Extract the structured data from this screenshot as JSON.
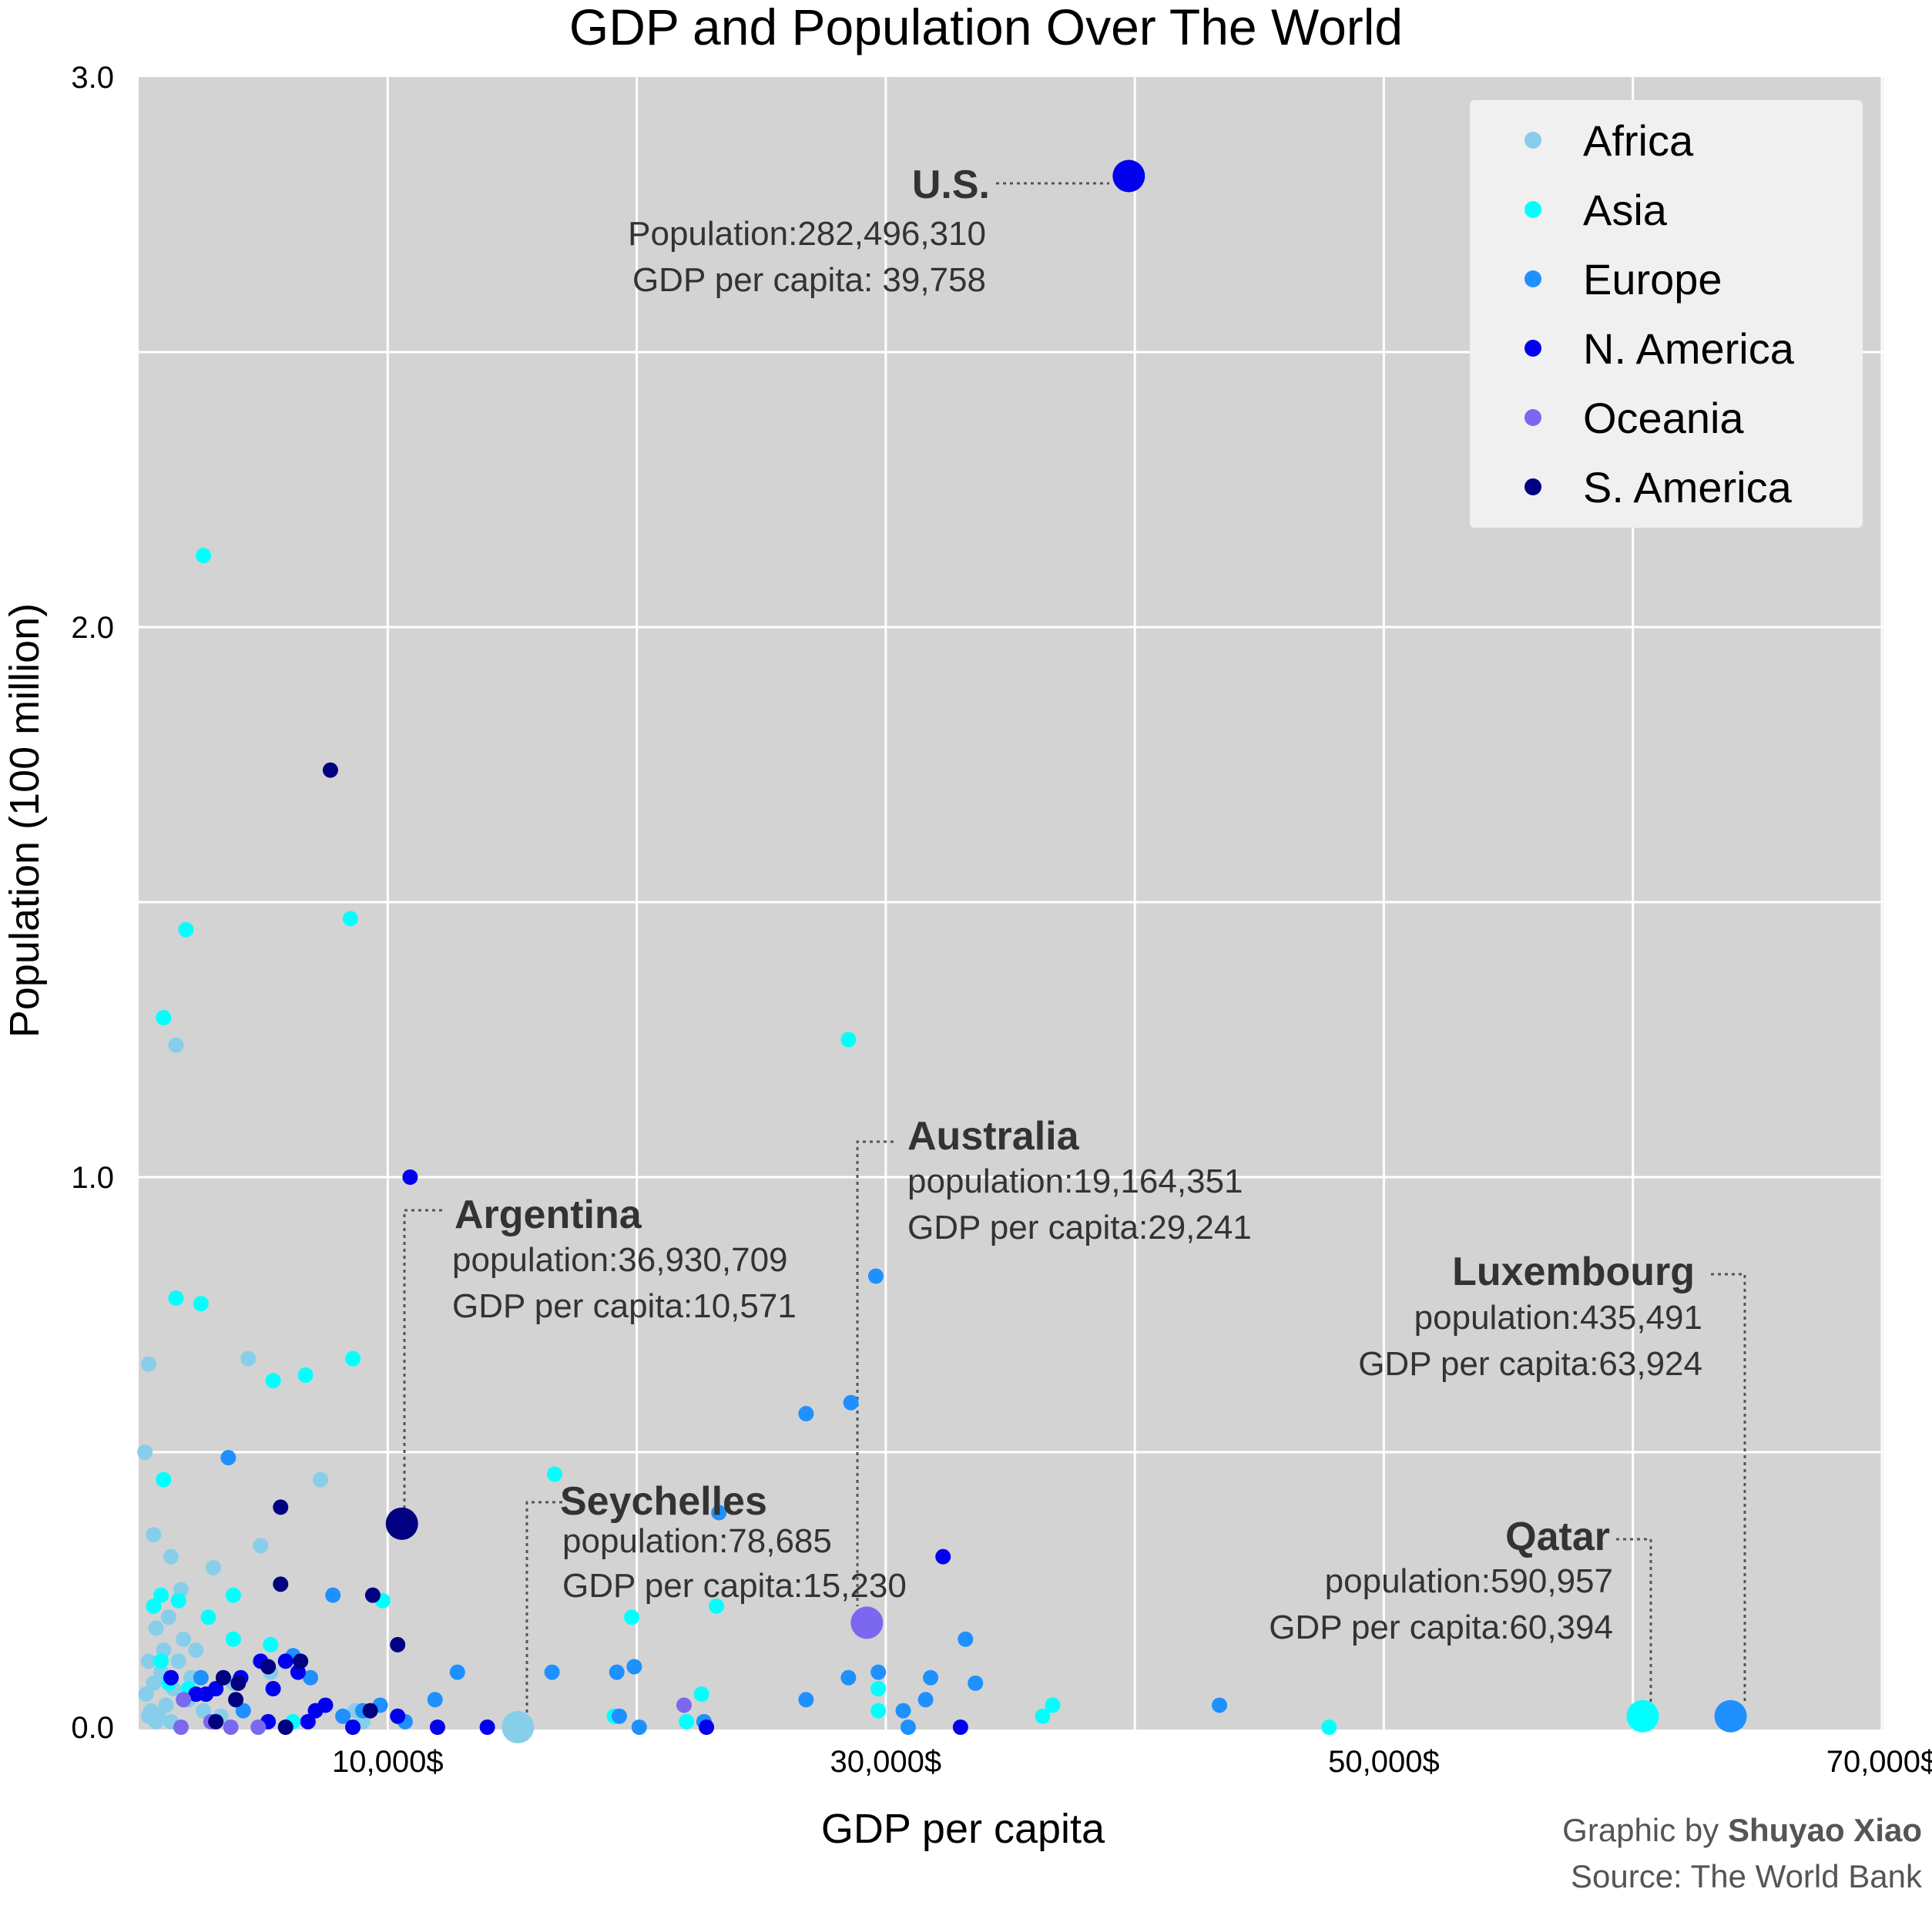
{
  "chart_data": {
    "type": "scatter",
    "title": "GDP and Population Over The World",
    "xlabel": "GDP per capita",
    "ylabel": "Population (100 million)",
    "xlim": [
      0,
      70000
    ],
    "ylim": [
      0,
      3.0
    ],
    "x_tick_values": [
      10000,
      30000,
      50000,
      70000
    ],
    "x_tick_labels": [
      "10,000$",
      "30,000$",
      "50,000$",
      "70,000$"
    ],
    "y_tick_values": [
      0,
      1,
      2,
      3
    ],
    "y_tick_labels": [
      "0.0",
      "1.0",
      "2.0",
      "3.0"
    ],
    "grid": true,
    "legend_position": "top-right",
    "series": [
      {
        "name": "Africa",
        "color": "#87ceeb",
        "points": [
          [
            250,
            0.5
          ],
          [
            400,
            0.66
          ],
          [
            600,
            0.35
          ],
          [
            1500,
            1.24
          ],
          [
            4400,
            0.67
          ],
          [
            7300,
            0.45
          ],
          [
            3000,
            0.29
          ],
          [
            4900,
            0.33
          ],
          [
            1300,
            0.31
          ],
          [
            1700,
            0.25
          ],
          [
            700,
            0.18
          ],
          [
            1000,
            0.14
          ],
          [
            2300,
            0.14
          ],
          [
            1200,
            0.2
          ],
          [
            1800,
            0.16
          ],
          [
            400,
            0.12
          ],
          [
            900,
            0.1
          ],
          [
            600,
            0.08
          ],
          [
            300,
            0.06
          ],
          [
            500,
            0.03
          ],
          [
            800,
            0.02
          ],
          [
            1100,
            0.04
          ],
          [
            1400,
            0.07
          ],
          [
            2000,
            0.05
          ],
          [
            2600,
            0.03
          ],
          [
            3300,
            0.02
          ],
          [
            5300,
            0.1
          ],
          [
            9000,
            0.01
          ],
          [
            8700,
            0.03
          ],
          [
            700,
            0.01
          ],
          [
            400,
            0.02
          ],
          [
            1300,
            0.01
          ],
          [
            1600,
            0.12
          ],
          [
            2100,
            0.09
          ],
          [
            3800,
            0.08
          ],
          [
            15230,
            0.0
          ]
        ]
      },
      {
        "name": "Asia",
        "color": "#00ffff",
        "points": [
          [
            2600,
            2.13
          ],
          [
            1900,
            1.45
          ],
          [
            8500,
            1.47
          ],
          [
            1000,
            1.29
          ],
          [
            28500,
            1.25
          ],
          [
            1500,
            0.78
          ],
          [
            2500,
            0.77
          ],
          [
            8600,
            0.67
          ],
          [
            5400,
            0.63
          ],
          [
            6700,
            0.64
          ],
          [
            1000,
            0.45
          ],
          [
            16700,
            0.46
          ],
          [
            1600,
            0.23
          ],
          [
            3800,
            0.24
          ],
          [
            9800,
            0.23
          ],
          [
            23200,
            0.22
          ],
          [
            19800,
            0.2
          ],
          [
            2800,
            0.2
          ],
          [
            3800,
            0.16
          ],
          [
            5300,
            0.15
          ],
          [
            900,
            0.12
          ],
          [
            1200,
            0.08
          ],
          [
            600,
            0.22
          ],
          [
            900,
            0.24
          ],
          [
            2000,
            0.07
          ],
          [
            22600,
            0.06
          ],
          [
            29700,
            0.07
          ],
          [
            29700,
            0.03
          ],
          [
            36700,
            0.04
          ],
          [
            36300,
            0.02
          ],
          [
            47800,
            0.0
          ],
          [
            19100,
            0.02
          ],
          [
            22000,
            0.01
          ],
          [
            6200,
            0.01
          ],
          [
            60394,
            0.02
          ]
        ]
      },
      {
        "name": "Europe",
        "color": "#1e90ff",
        "points": [
          [
            3600,
            0.49
          ],
          [
            10300,
            0.38
          ],
          [
            7800,
            0.24
          ],
          [
            26800,
            0.57
          ],
          [
            28600,
            0.59
          ],
          [
            29600,
            0.82
          ],
          [
            23300,
            0.39
          ],
          [
            33200,
            0.16
          ],
          [
            31800,
            0.09
          ],
          [
            28500,
            0.09
          ],
          [
            29700,
            0.1
          ],
          [
            33600,
            0.08
          ],
          [
            12800,
            0.1
          ],
          [
            16600,
            0.1
          ],
          [
            19200,
            0.1
          ],
          [
            19900,
            0.11
          ],
          [
            11900,
            0.05
          ],
          [
            9700,
            0.04
          ],
          [
            9000,
            0.03
          ],
          [
            8200,
            0.02
          ],
          [
            10700,
            0.01
          ],
          [
            19300,
            0.02
          ],
          [
            20100,
            0.0
          ],
          [
            22700,
            0.01
          ],
          [
            26800,
            0.05
          ],
          [
            30700,
            0.03
          ],
          [
            31600,
            0.05
          ],
          [
            43400,
            0.04
          ],
          [
            30900,
            0.0
          ],
          [
            6200,
            0.13
          ],
          [
            2500,
            0.09
          ],
          [
            4200,
            0.03
          ],
          [
            6900,
            0.09
          ],
          [
            63924,
            0.02
          ]
        ]
      },
      {
        "name": "N. America",
        "color": "#0000ee",
        "points": [
          [
            39758,
            2.82
          ],
          [
            10900,
            1.0
          ],
          [
            32300,
            0.31
          ],
          [
            1300,
            0.09
          ],
          [
            2700,
            0.06
          ],
          [
            3100,
            0.07
          ],
          [
            4100,
            0.09
          ],
          [
            4900,
            0.12
          ],
          [
            5400,
            0.07
          ],
          [
            5900,
            0.12
          ],
          [
            6400,
            0.1
          ],
          [
            7100,
            0.03
          ],
          [
            7500,
            0.04
          ],
          [
            5200,
            0.01
          ],
          [
            8600,
            0.0
          ],
          [
            10400,
            0.02
          ],
          [
            12000,
            0.0
          ],
          [
            14000,
            0.0
          ],
          [
            22800,
            0.0
          ],
          [
            33000,
            0.0
          ],
          [
            2300,
            0.06
          ],
          [
            6800,
            0.01
          ]
        ]
      },
      {
        "name": "Oceania",
        "color": "#7b68ee",
        "points": [
          [
            29241,
            0.19
          ],
          [
            21900,
            0.04
          ],
          [
            1800,
            0.05
          ],
          [
            3700,
            0.0
          ],
          [
            4800,
            0.0
          ],
          [
            1700,
            0.0
          ],
          [
            2900,
            0.01
          ]
        ]
      },
      {
        "name": "S. America",
        "color": "#000080",
        "points": [
          [
            7700,
            1.74
          ],
          [
            10571,
            0.37
          ],
          [
            5700,
            0.4
          ],
          [
            5700,
            0.26
          ],
          [
            9400,
            0.24
          ],
          [
            10400,
            0.15
          ],
          [
            6500,
            0.12
          ],
          [
            5200,
            0.11
          ],
          [
            4000,
            0.08
          ],
          [
            3400,
            0.09
          ],
          [
            3900,
            0.05
          ],
          [
            9300,
            0.03
          ],
          [
            3100,
            0.01
          ],
          [
            5900,
            0.0
          ]
        ]
      }
    ],
    "highlighted": [
      {
        "x": 39758,
        "y": 2.82,
        "series": "N. America"
      },
      {
        "x": 10571,
        "y": 0.37,
        "series": "S. America"
      },
      {
        "x": 29241,
        "y": 0.19,
        "series": "Oceania"
      },
      {
        "x": 15230,
        "y": 0.0,
        "series": "Africa"
      },
      {
        "x": 63924,
        "y": 0.02,
        "series": "Europe"
      },
      {
        "x": 60394,
        "y": 0.02,
        "series": "Asia"
      }
    ],
    "annotations": [
      {
        "name": "U.S.",
        "lines": [
          "Population:282,496,310",
          "GDP per capita: 39,758"
        ]
      },
      {
        "name": "Argentina",
        "lines": [
          "population:36,930,709",
          "GDP per capita:10,571"
        ]
      },
      {
        "name": "Australia",
        "lines": [
          "population:19,164,351",
          "GDP per capita:29,241"
        ]
      },
      {
        "name": "Seychelles",
        "lines": [
          "population:78,685",
          "GDP per capita:15,230"
        ]
      },
      {
        "name": "Luxembourg",
        "lines": [
          "population:435,491",
          "GDP per capita:63,924"
        ]
      },
      {
        "name": "Qatar",
        "lines": [
          "population:590,957",
          "GDP per capita:60,394"
        ]
      }
    ]
  },
  "credit": {
    "prefix": "Graphic by ",
    "author": "Shuyao Xiao",
    "source": "Source: The World Bank"
  }
}
